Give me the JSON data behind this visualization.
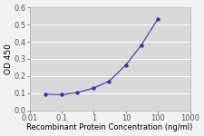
{
  "x": [
    0.03,
    0.1,
    0.3,
    1,
    3,
    10,
    30,
    100
  ],
  "y": [
    0.094,
    0.091,
    0.103,
    0.13,
    0.17,
    0.265,
    0.38,
    0.535
  ],
  "line_color": "#4444aa",
  "marker_color": "#3333aa",
  "marker_style": "o",
  "marker_size": 2.8,
  "linewidth": 0.9,
  "xlim": [
    0.01,
    1000
  ],
  "ylim": [
    0.0,
    0.6
  ],
  "yticks": [
    0.0,
    0.1,
    0.2,
    0.3,
    0.4,
    0.5,
    0.6
  ],
  "xtick_labels": [
    "0.01",
    "0.1",
    "1",
    "10",
    "100",
    "1000"
  ],
  "xtick_values": [
    0.01,
    0.1,
    1,
    10,
    100,
    1000
  ],
  "ylabel": "OD 450",
  "xlabel": "Recombinant Protein Concentration (ng/ml)",
  "ylabel_fontsize": 6.5,
  "xlabel_fontsize": 6.0,
  "tick_fontsize": 6.0,
  "plot_bg_color": "#d9d9d9",
  "fig_bg_color": "#f2f2f2",
  "grid_color": "#ffffff",
  "grid_linewidth": 0.7,
  "spine_color": "#aaaaaa",
  "spine_linewidth": 0.5
}
